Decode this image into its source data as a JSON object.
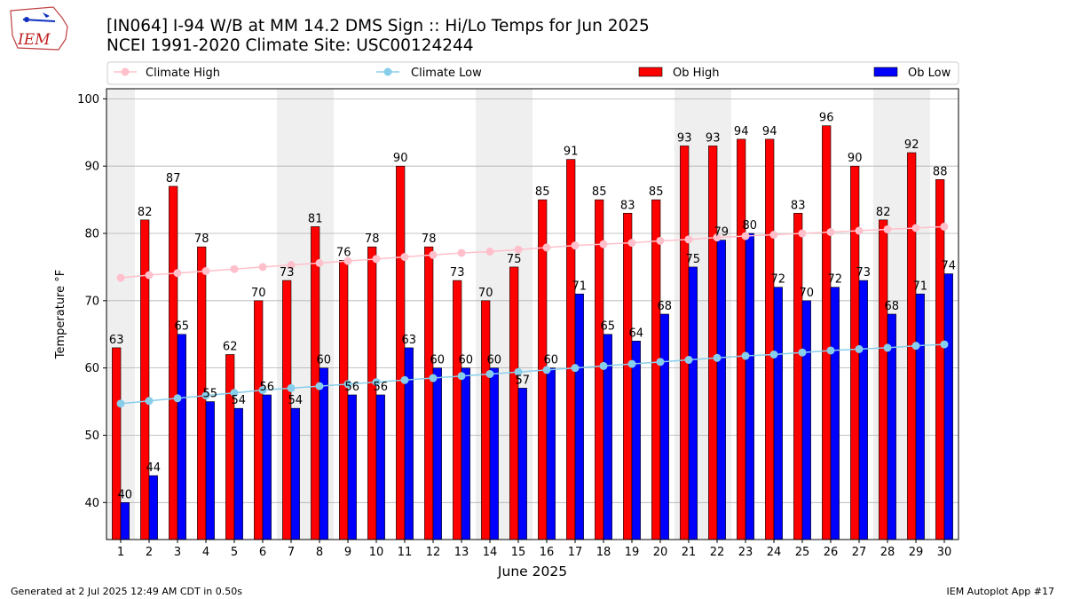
{
  "header": {
    "title_line1": "[IN064] I-94 W/B at MM 14.2 DMS Sign  :: Hi/Lo Temps for Jun 2025",
    "title_line2": "NCEI 1991-2020 Climate Site: USC00124244",
    "logo_text": "IEM"
  },
  "footer": {
    "generated": "Generated at 2 Jul 2025 12:49 AM CDT in 0.50s",
    "app": "IEM Autoplot App #17"
  },
  "colors": {
    "ob_high": "#ff0000",
    "ob_low": "#0000ff",
    "climate_high": "#ffc0cb",
    "climate_low": "#87ceeb",
    "weekend_band": "#efefef",
    "grid": "#b0b0b0"
  },
  "chart_data": {
    "type": "bar",
    "xlabel": "June 2025",
    "ylabel": "Temperature °F",
    "ylim": [
      34.5,
      101.5
    ],
    "yticks": [
      40,
      50,
      60,
      70,
      80,
      90,
      100
    ],
    "grid": "horizontal",
    "legend_position": "top",
    "categories": [
      "1",
      "2",
      "3",
      "4",
      "5",
      "6",
      "7",
      "8",
      "9",
      "10",
      "11",
      "12",
      "13",
      "14",
      "15",
      "16",
      "17",
      "18",
      "19",
      "20",
      "21",
      "22",
      "23",
      "24",
      "25",
      "26",
      "27",
      "28",
      "29",
      "30"
    ],
    "shaded_days": [
      1,
      7,
      8,
      14,
      15,
      21,
      22,
      28,
      29
    ],
    "series": [
      {
        "name": "Climate High",
        "kind": "line",
        "values": [
          73.4,
          73.8,
          74.1,
          74.4,
          74.7,
          75.0,
          75.3,
          75.6,
          75.9,
          76.2,
          76.5,
          76.8,
          77.1,
          77.3,
          77.6,
          77.9,
          78.2,
          78.4,
          78.6,
          78.9,
          79.1,
          79.4,
          79.6,
          79.8,
          80.0,
          80.2,
          80.4,
          80.6,
          80.8,
          81.0
        ]
      },
      {
        "name": "Climate Low",
        "kind": "line",
        "values": [
          54.7,
          55.1,
          55.5,
          55.9,
          56.3,
          56.7,
          57.0,
          57.3,
          57.6,
          57.9,
          58.2,
          58.5,
          58.8,
          59.1,
          59.4,
          59.7,
          60.0,
          60.3,
          60.6,
          60.9,
          61.2,
          61.5,
          61.8,
          62.0,
          62.3,
          62.6,
          62.8,
          63.0,
          63.3,
          63.5
        ]
      },
      {
        "name": "Ob High",
        "kind": "bar",
        "values": [
          63,
          82,
          87,
          78,
          62,
          70,
          73,
          81,
          76,
          78,
          90,
          78,
          73,
          70,
          75,
          85,
          91,
          85,
          83,
          85,
          93,
          93,
          94,
          94,
          83,
          96,
          90,
          82,
          92,
          88
        ]
      },
      {
        "name": "Ob Low",
        "kind": "bar",
        "values": [
          40,
          44,
          65,
          55,
          54,
          56,
          54,
          60,
          56,
          56,
          63,
          60,
          60,
          60,
          57,
          60,
          71,
          65,
          64,
          68,
          75,
          79,
          80,
          72,
          70,
          72,
          73,
          68,
          71,
          74
        ]
      }
    ]
  }
}
